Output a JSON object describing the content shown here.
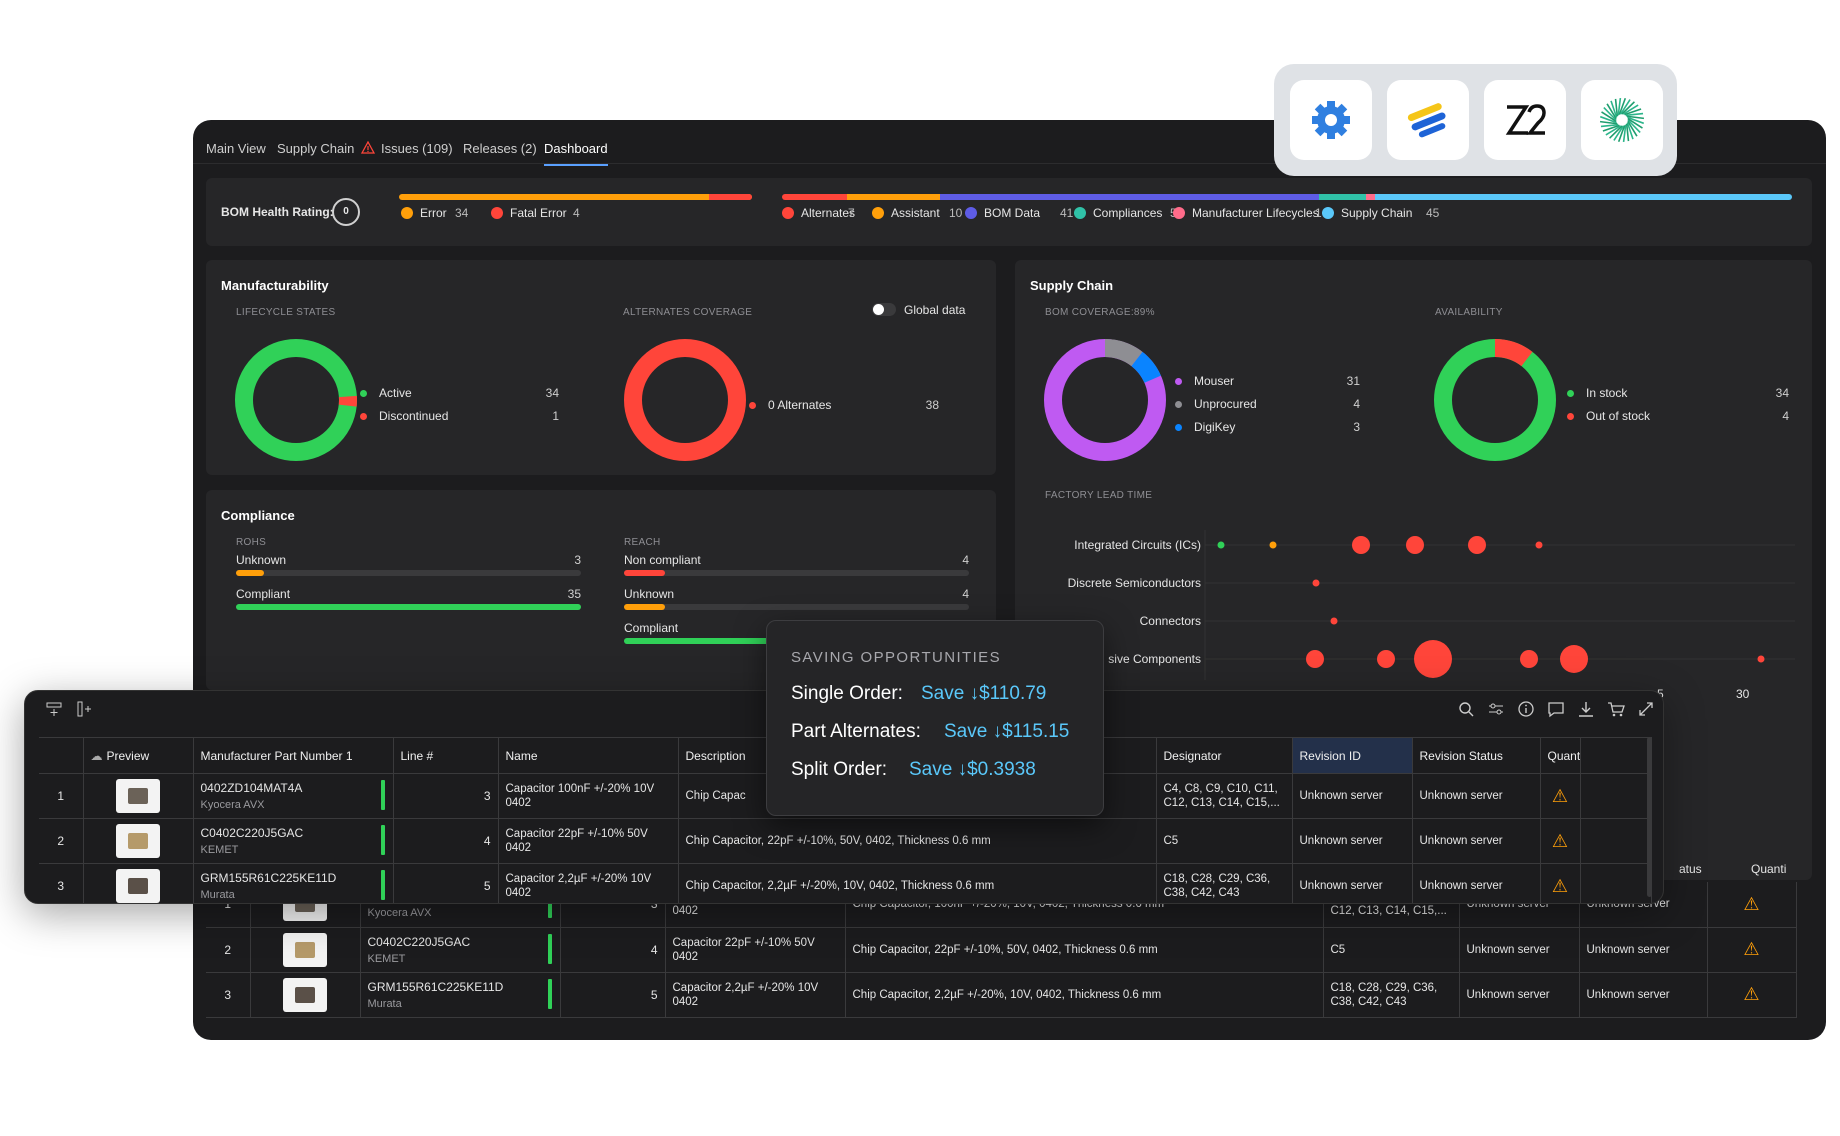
{
  "tabs": [
    {
      "label": "Main View"
    },
    {
      "label": "Supply Chain"
    },
    {
      "label": "Issues (109)"
    },
    {
      "label": "Releases (2)"
    },
    {
      "label": "Dashboard"
    }
  ],
  "health": {
    "title": "BOM Health Rating:",
    "score": "0",
    "errors": [
      {
        "label": "Error",
        "count": "34",
        "color": "#ff9f0a"
      },
      {
        "label": "Fatal Error",
        "count": "4",
        "color": "#ff453a"
      }
    ],
    "categories": [
      {
        "label": "Alternates",
        "count": "7",
        "color": "#ff453a"
      },
      {
        "label": "Assistant",
        "count": "10",
        "color": "#ff9f0a"
      },
      {
        "label": "BOM Data",
        "count": "41",
        "color": "#5e5ce6"
      },
      {
        "label": "Compliances",
        "count": "5",
        "color": "#30c2a8"
      },
      {
        "label": "Manufacturer Lifecycles",
        "count": "1",
        "color": "#ff6b8a"
      },
      {
        "label": "Supply Chain",
        "count": "45",
        "color": "#5ac8fa"
      }
    ]
  },
  "manufacturability": {
    "title": "Manufacturability",
    "lifecycle": {
      "label": "LIFECYCLE STATES",
      "items": [
        {
          "label": "Active",
          "count": "34",
          "color": "#30d158"
        },
        {
          "label": "Discontinued",
          "count": "1",
          "color": "#ff453a"
        }
      ]
    },
    "alternates": {
      "label": "ALTERNATES COVERAGE",
      "toggle_label": "Global data",
      "items": [
        {
          "label": "0 Alternates",
          "count": "38",
          "color": "#ff453a"
        }
      ]
    }
  },
  "supply_chain": {
    "title": "Supply Chain",
    "coverage": {
      "label": "BOM COVERAGE:89%",
      "items": [
        {
          "label": "Mouser",
          "count": "31",
          "color": "#bf5af2"
        },
        {
          "label": "Unprocured",
          "count": "4",
          "color": "#8e8e93"
        },
        {
          "label": "DigiKey",
          "count": "3",
          "color": "#0a84ff"
        }
      ]
    },
    "availability": {
      "label": "AVAILABILITY",
      "items": [
        {
          "label": "In stock",
          "count": "34",
          "color": "#30d158"
        },
        {
          "label": "Out of stock",
          "count": "4",
          "color": "#ff453a"
        }
      ]
    },
    "lead_time": {
      "label": "FACTORY LEAD TIME",
      "rows": [
        "Integrated Circuits (ICs)",
        "Discrete Semiconductors",
        "Connectors",
        "sive Components"
      ],
      "ticks": [
        "5",
        "30"
      ]
    }
  },
  "compliance": {
    "title": "Compliance",
    "rohs": {
      "label": "ROHS",
      "items": [
        {
          "label": "Unknown",
          "count": "3",
          "color": "#ff9f0a",
          "fraction": 0.08
        },
        {
          "label": "Compliant",
          "count": "35",
          "color": "#30d158",
          "fraction": 1.0
        }
      ]
    },
    "reach": {
      "label": "REACH",
      "items": [
        {
          "label": "Non compliant",
          "count": "4",
          "color": "#ff453a",
          "fraction": 0.12
        },
        {
          "label": "Unknown",
          "count": "4",
          "color": "#ff9f0a",
          "fraction": 0.12
        },
        {
          "label": "Compliant",
          "count": "",
          "color": "#30d158",
          "fraction": 0.9
        }
      ]
    }
  },
  "saving": {
    "title": "SAVING OPPORTUNITIES",
    "rows": [
      {
        "label": "Single Order:",
        "value": "Save ↓$110.79"
      },
      {
        "label": "Part Alternates:",
        "value": "Save ↓$115.15"
      },
      {
        "label": "Split Order:",
        "value": "Save ↓$0.3938"
      }
    ]
  },
  "table": {
    "columns": [
      "Preview",
      "Manufacturer Part Number 1",
      "Line #",
      "Name",
      "Description",
      "Designator",
      "Revision ID",
      "Revision Status",
      "Quanti"
    ],
    "back_columns_visible": [
      "atus",
      "Quanti"
    ],
    "rows": [
      {
        "idx": "1",
        "mpn": "0402ZD104MAT4A",
        "mfr": "Kyocera AVX",
        "line": "3",
        "name": "Capacitor 100nF +/-20% 10V 0402",
        "desc_short": "Chip Capac",
        "desc": "Chip Capacitor, 100nF +/-20%, 10V, 0402, Thickness 0.6 mm",
        "designator": "C4, C8, C9, C10, C11, C12, C13, C14, C15,...",
        "rev_id": "Unknown server",
        "rev_status": "Unknown server",
        "chip": "#6b6258"
      },
      {
        "idx": "2",
        "mpn": "C0402C220J5GAC",
        "mfr": "KEMET",
        "line": "4",
        "name": "Capacitor 22pF +/-10% 50V 0402",
        "desc_short": "Chip Capacitor, 22pF +/-10%, 50V, 0402, Thickness 0.6 mm",
        "desc": "Chip Capacitor, 22pF +/-10%, 50V, 0402, Thickness 0.6 mm",
        "designator": "C5",
        "rev_id": "Unknown server",
        "rev_status": "Unknown server",
        "chip": "#b59a6a"
      },
      {
        "idx": "3",
        "mpn": "GRM155R61C225KE11D",
        "mfr": "Murata",
        "line": "5",
        "name": "Capacitor 2,2µF +/-20% 10V 0402",
        "desc_short": "Chip Capacitor, 2,2µF +/-20%, 10V, 0402, Thickness 0.6 mm",
        "desc": "Chip Capacitor, 2,2µF +/-20%, 10V, 0402, Thickness 0.6 mm",
        "designator": "C18, C28, C29, C36, C38, C42, C43",
        "rev_id": "Unknown server",
        "rev_status": "Unknown server",
        "chip": "#5a5048"
      }
    ]
  },
  "integrations": [
    "gear-icon",
    "stripes-logo",
    "z2-logo",
    "spiral-logo"
  ]
}
